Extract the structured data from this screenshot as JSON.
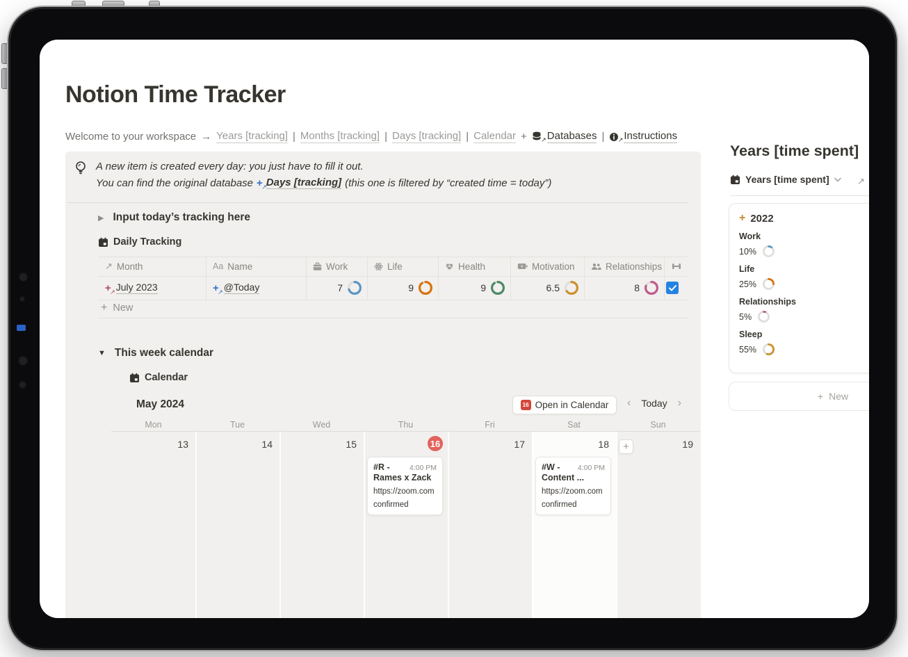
{
  "header": {
    "title": "Notion Time Tracker",
    "breadcrumb": {
      "intro": "Welcome to your workspace",
      "links": [
        "Years [tracking]",
        "Months [tracking]",
        "Days [tracking]",
        "Calendar"
      ],
      "databases": "Databases",
      "instructions": "Instructions"
    }
  },
  "callout": {
    "line1": "A new item is created every day: you just have to fill it out.",
    "line2_prefix": "You can find the original database",
    "line2_link": "Days [tracking]",
    "line2_suffix": "(this one is filtered by “created time = today”)"
  },
  "tracking": {
    "toggle": "Input today’s tracking here",
    "db_title": "Daily Tracking",
    "columns": [
      "Month",
      "Name",
      "Work",
      "Life",
      "Health",
      "Motivation",
      "Relationships"
    ],
    "row": {
      "month": "July 2023",
      "name": "@Today",
      "scores": [
        {
          "label": "7",
          "pct": 70,
          "color": "#5b96c2"
        },
        {
          "label": "9",
          "pct": 90,
          "color": "#d9730d"
        },
        {
          "label": "9",
          "pct": 90,
          "color": "#4d8a66"
        },
        {
          "label": "6.5",
          "pct": 65,
          "color": "#cb912f"
        },
        {
          "label": "8",
          "pct": 80,
          "color": "#c05c8c"
        }
      ],
      "checkbox_checked": true
    },
    "new_label": "New"
  },
  "cal": {
    "toggle": "This week calendar",
    "db_title": "Calendar",
    "month": "May 2024",
    "open_label": "Open in Calendar",
    "open_day": "16",
    "today_label": "Today",
    "weekdays": [
      "Mon",
      "Tue",
      "Wed",
      "Thu",
      "Fri",
      "Sat",
      "Sun"
    ],
    "dates": [
      "13",
      "14",
      "15",
      "16",
      "17",
      "18",
      "19"
    ],
    "today_date": "16",
    "events": [
      {
        "tag": "#R -",
        "time": "4:00 PM",
        "title": "Rames x Zack",
        "url": "https://zoom.com",
        "status": "confirmed",
        "day": "Thu 16"
      },
      {
        "tag": "#W -",
        "time": "4:00 PM",
        "title": "Content ...",
        "url": "https://zoom.com",
        "status": "confirmed",
        "day": "Sat 18"
      }
    ]
  },
  "panel": {
    "title": "Years [time spent]",
    "view_label": "Years [time spent]",
    "year": "2022",
    "props": [
      {
        "label": "Work",
        "value": "10%",
        "pct": 10,
        "color": "#5b96c2"
      },
      {
        "label": "Life",
        "value": "25%",
        "pct": 25,
        "color": "#d9730d"
      },
      {
        "label": "Relationships",
        "value": "5%",
        "pct": 5,
        "color": "#c05c8c"
      },
      {
        "label": "Sleep",
        "value": "55%",
        "pct": 55,
        "color": "#cb912f"
      }
    ],
    "new_label": "New"
  },
  "icons": {
    "arrow_right": "→",
    "pipe": "|",
    "plus": "+",
    "toggle_collapsed": "▶",
    "toggle_expanded": "▼",
    "chevron_left": "‹",
    "chevron_right": "›",
    "arrow_up_right": "↗",
    "name_field": "Aa"
  },
  "colors": {
    "checkbox": "#2383e2",
    "today_badge": "#e2625c",
    "callout_bg": "#f1f0ee"
  }
}
